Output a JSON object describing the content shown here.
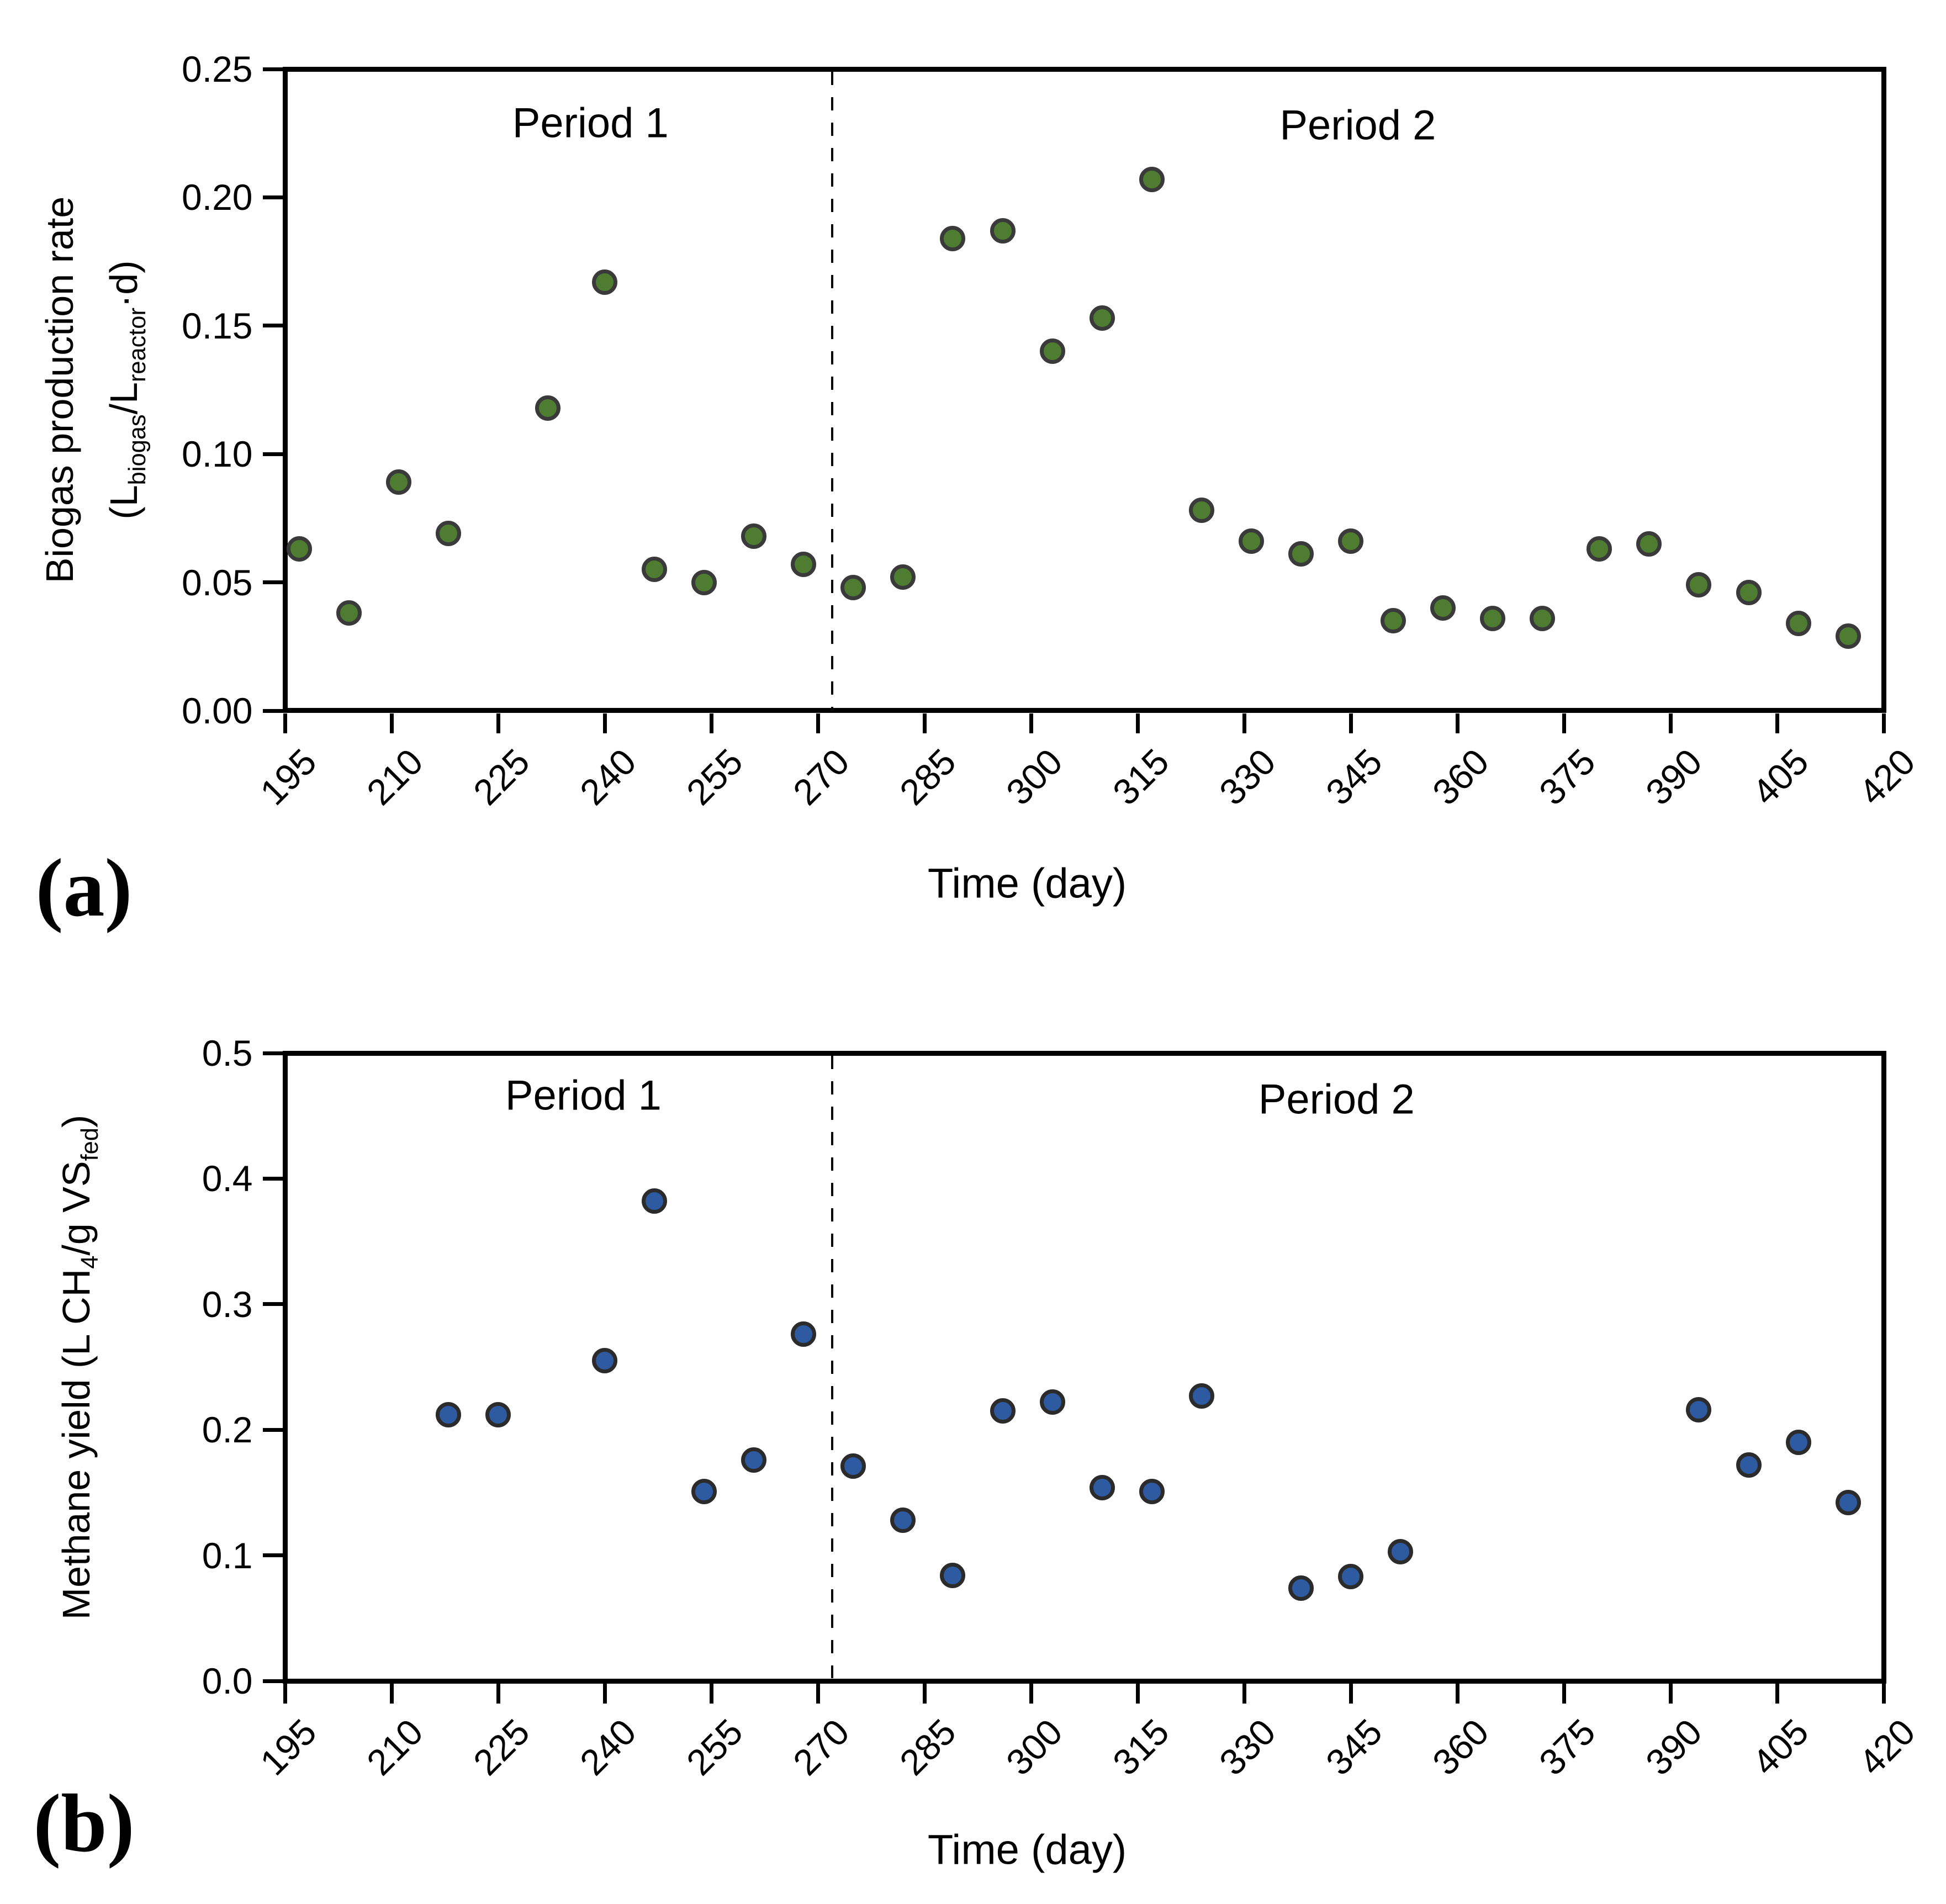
{
  "figure": {
    "background": "#ffffff",
    "x_axis_title": "Time (day)",
    "divider_day": 272
  },
  "colors": {
    "biogas_marker_fill": "#4e7c30",
    "methane_marker_fill": "#2d5aa0",
    "marker_border": "#3a3a3a",
    "axis_color": "#000000"
  },
  "chart_data": [
    {
      "id": "a",
      "type": "scatter",
      "panel_label": "(a)",
      "ylabel_line1": "Biogas production rate",
      "ylabel_line2_rich": [
        {
          "t": "(L"
        },
        {
          "t": "biogas",
          "sub": true
        },
        {
          "t": "/L"
        },
        {
          "t": "reactor",
          "sub": true
        },
        {
          "t": "·d)"
        }
      ],
      "xlabel": "Time (day)",
      "xlim": [
        195,
        420
      ],
      "ylim": [
        0.0,
        0.25
      ],
      "x_ticks": [
        195,
        210,
        225,
        240,
        255,
        270,
        285,
        300,
        315,
        330,
        345,
        360,
        375,
        390,
        405,
        420
      ],
      "y_tick_labels": [
        "0.00",
        "0.05",
        "0.10",
        "0.15",
        "0.20",
        "0.25"
      ],
      "y_tick_values": [
        0.0,
        0.05,
        0.1,
        0.15,
        0.2,
        0.25
      ],
      "grid": false,
      "legend": "none",
      "divider_x": 272,
      "annotations": [
        {
          "text": "Period 1",
          "day": 238,
          "value": 0.229
        },
        {
          "text": "Period 2",
          "day": 346,
          "value": 0.228
        }
      ],
      "series": [
        {
          "name": "Biogas production rate",
          "marker": "circle-green",
          "points": [
            [
              197,
              0.063
            ],
            [
              204,
              0.038
            ],
            [
              211,
              0.089
            ],
            [
              218,
              0.069
            ],
            [
              232,
              0.118
            ],
            [
              240,
              0.167
            ],
            [
              247,
              0.055
            ],
            [
              254,
              0.05
            ],
            [
              261,
              0.068
            ],
            [
              268,
              0.057
            ],
            [
              275,
              0.048
            ],
            [
              282,
              0.052
            ],
            [
              289,
              0.184
            ],
            [
              296,
              0.187
            ],
            [
              303,
              0.14
            ],
            [
              310,
              0.153
            ],
            [
              317,
              0.207
            ],
            [
              324,
              0.078
            ],
            [
              331,
              0.066
            ],
            [
              338,
              0.061
            ],
            [
              345,
              0.066
            ],
            [
              351,
              0.035
            ],
            [
              358,
              0.04
            ],
            [
              365,
              0.036
            ],
            [
              372,
              0.036
            ],
            [
              380,
              0.063
            ],
            [
              387,
              0.065
            ],
            [
              394,
              0.049
            ],
            [
              401,
              0.046
            ],
            [
              408,
              0.034
            ],
            [
              415,
              0.029
            ]
          ]
        }
      ]
    },
    {
      "id": "b",
      "type": "scatter",
      "panel_label": "(b)",
      "ylabel_rich": [
        {
          "t": "Methane yield (L CH"
        },
        {
          "t": "4",
          "sub": true
        },
        {
          "t": "/g VS"
        },
        {
          "t": "fed",
          "sub": true
        },
        {
          "t": ")"
        }
      ],
      "xlabel": "Time (day)",
      "xlim": [
        195,
        420
      ],
      "ylim": [
        0.0,
        0.5
      ],
      "x_ticks": [
        195,
        210,
        225,
        240,
        255,
        270,
        285,
        300,
        315,
        330,
        345,
        360,
        375,
        390,
        405,
        420
      ],
      "y_tick_labels": [
        "0.0",
        "0.1",
        "0.2",
        "0.3",
        "0.4",
        "0.5"
      ],
      "y_tick_values": [
        0.0,
        0.1,
        0.2,
        0.3,
        0.4,
        0.5
      ],
      "grid": false,
      "legend": "none",
      "divider_x": 272,
      "annotations": [
        {
          "text": "Period 1",
          "day": 237,
          "value": 0.466
        },
        {
          "text": "Period 2",
          "day": 343,
          "value": 0.463
        }
      ],
      "series": [
        {
          "name": "Methane yield",
          "marker": "circle-blue",
          "points": [
            [
              218,
              0.212
            ],
            [
              225,
              0.212
            ],
            [
              240,
              0.255
            ],
            [
              247,
              0.382
            ],
            [
              254,
              0.151
            ],
            [
              261,
              0.176
            ],
            [
              268,
              0.276
            ],
            [
              275,
              0.171
            ],
            [
              282,
              0.128
            ],
            [
              289,
              0.084
            ],
            [
              296,
              0.215
            ],
            [
              303,
              0.222
            ],
            [
              310,
              0.154
            ],
            [
              317,
              0.151
            ],
            [
              324,
              0.227
            ],
            [
              338,
              0.074
            ],
            [
              345,
              0.083
            ],
            [
              352,
              0.103
            ],
            [
              394,
              0.216
            ],
            [
              401,
              0.172
            ],
            [
              408,
              0.19
            ],
            [
              415,
              0.142
            ]
          ]
        }
      ]
    }
  ]
}
